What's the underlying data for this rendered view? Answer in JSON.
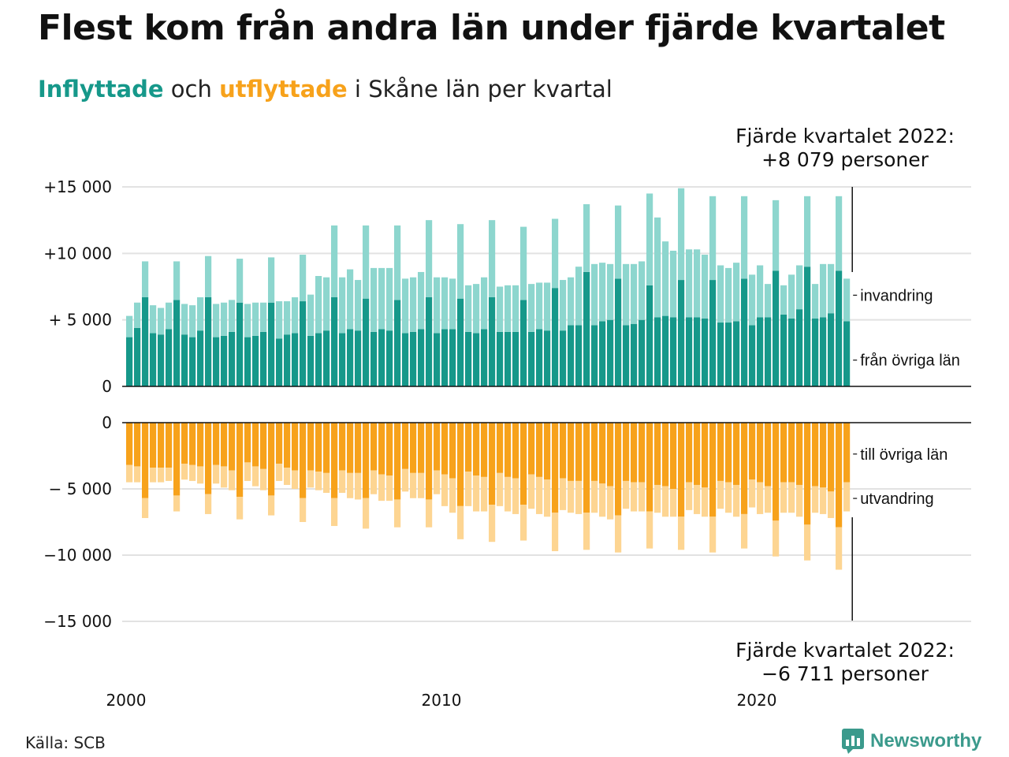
{
  "title": "Flest kom från andra län under fjärde kvartalet",
  "subtitle": {
    "part_in": "Inflyttade",
    "part_mid": " och ",
    "part_out": "utflyttade",
    "part_end": " i Skåne län per kvartal"
  },
  "annotation_top": {
    "line1": "Fjärde kvartalet 2022:",
    "line2": "+8 079 personer"
  },
  "annotation_bottom": {
    "line1": "Fjärde kvartalet 2022:",
    "line2": "−6 711 personer"
  },
  "source": "Källa: SCB",
  "brand": "Newsworthy",
  "colors": {
    "in_dark": "#16988a",
    "in_light": "#8dd6ce",
    "out_dark": "#f7a21b",
    "out_light": "#fdd592",
    "grid": "#e2e2e2",
    "axis": "#111111"
  },
  "chart_data": [
    {
      "type": "bar",
      "stacked": true,
      "panel": "top",
      "x_start": "2000 Q1",
      "x_end": "2022 Q4",
      "x_ticks": [
        "2000",
        "2010",
        "2020"
      ],
      "y_ticks": [
        "+15 000",
        "+10 000",
        "+ 5 000",
        "0"
      ],
      "y_tick_values": [
        15000,
        10000,
        5000,
        0
      ],
      "ylim": [
        0,
        15000
      ],
      "grid": true,
      "series": [
        {
          "name": "från övriga län",
          "color": "#16988a",
          "values": [
            3700,
            4400,
            6700,
            4000,
            3900,
            4300,
            6500,
            3900,
            3700,
            4200,
            6700,
            3700,
            3800,
            4100,
            6300,
            3700,
            3800,
            4100,
            6300,
            3600,
            3900,
            4000,
            6400,
            3800,
            4000,
            4200,
            6700,
            4000,
            4300,
            4200,
            6600,
            4100,
            4300,
            4200,
            6500,
            4000,
            4100,
            4300,
            6700,
            4000,
            4300,
            4300,
            6600,
            4100,
            4000,
            4300,
            6700,
            4100,
            4100,
            4100,
            6500,
            4100,
            4300,
            4200,
            7400,
            4200,
            4600,
            4600,
            8600,
            4600,
            4900,
            5000,
            8100,
            4600,
            4700,
            5000,
            7600,
            5200,
            5300,
            5200,
            8000,
            5200,
            5200,
            5100,
            8000,
            4800,
            4800,
            4900,
            8100,
            4600,
            5200,
            5200,
            8700,
            5400,
            5100,
            5800,
            9000,
            5100,
            5200,
            5500,
            8700,
            4900
          ]
        },
        {
          "name": "invandring",
          "color": "#8dd6ce",
          "values": [
            1600,
            1900,
            2700,
            2100,
            2000,
            2000,
            2900,
            2300,
            2400,
            2500,
            3100,
            2500,
            2500,
            2400,
            3300,
            2500,
            2500,
            2200,
            3400,
            2800,
            2500,
            2700,
            3500,
            3100,
            4300,
            4000,
            5400,
            4200,
            4500,
            3800,
            5500,
            4800,
            4600,
            4700,
            5600,
            4100,
            4100,
            4300,
            5800,
            4200,
            3900,
            3800,
            5600,
            3500,
            3700,
            3900,
            5800,
            3400,
            3500,
            3500,
            5500,
            3600,
            3500,
            3600,
            5200,
            3800,
            3600,
            4400,
            5100,
            4600,
            4400,
            4200,
            5500,
            4600,
            4500,
            4400,
            6900,
            7500,
            5600,
            5000,
            6900,
            5100,
            5100,
            4800,
            6300,
            4300,
            4100,
            4400,
            6200,
            3800,
            3900,
            2500,
            5300,
            2200,
            3300,
            3300,
            5300,
            2600,
            4000,
            3700,
            5600,
            3200
          ]
        }
      ]
    },
    {
      "type": "bar",
      "stacked": true,
      "panel": "bottom",
      "x_start": "2000 Q1",
      "x_end": "2022 Q4",
      "x_ticks": [
        "2000",
        "2010",
        "2020"
      ],
      "y_ticks": [
        "0",
        "− 5 000",
        "−10 000",
        "−15 000"
      ],
      "y_tick_values": [
        0,
        -5000,
        -10000,
        -15000
      ],
      "ylim": [
        -15000,
        0
      ],
      "grid": true,
      "series": [
        {
          "name": "till övriga län",
          "color": "#f7a21b",
          "values": [
            -3200,
            -3300,
            -5700,
            -3400,
            -3400,
            -3400,
            -5500,
            -3100,
            -3200,
            -3300,
            -5400,
            -3200,
            -3300,
            -3600,
            -5600,
            -3000,
            -3300,
            -3500,
            -5500,
            -3100,
            -3400,
            -3600,
            -5700,
            -3600,
            -3700,
            -3800,
            -5700,
            -3600,
            -3800,
            -3800,
            -5700,
            -3600,
            -3900,
            -4000,
            -5800,
            -3500,
            -3800,
            -3800,
            -5800,
            -3600,
            -3900,
            -4200,
            -6300,
            -3700,
            -4000,
            -4100,
            -6200,
            -3800,
            -4100,
            -4200,
            -6200,
            -3900,
            -4100,
            -4300,
            -6800,
            -4200,
            -4400,
            -4400,
            -6800,
            -4400,
            -4600,
            -4800,
            -7000,
            -4400,
            -4500,
            -4500,
            -6700,
            -4700,
            -4800,
            -5000,
            -7100,
            -4500,
            -4700,
            -4900,
            -7100,
            -4400,
            -4500,
            -4700,
            -6900,
            -4300,
            -4500,
            -4800,
            -7400,
            -4500,
            -4500,
            -4700,
            -7700,
            -4800,
            -4900,
            -5200,
            -7900,
            -4500
          ]
        },
        {
          "name": "utvandring",
          "color": "#fdd592",
          "values": [
            -1300,
            -1200,
            -1500,
            -1100,
            -1100,
            -1000,
            -1200,
            -1200,
            -1200,
            -1300,
            -1500,
            -1400,
            -1600,
            -1500,
            -1700,
            -1400,
            -1500,
            -1600,
            -1500,
            -1300,
            -1300,
            -1400,
            -1800,
            -1300,
            -1400,
            -1500,
            -2100,
            -1700,
            -1900,
            -2000,
            -2300,
            -1800,
            -2000,
            -1900,
            -2100,
            -1700,
            -1900,
            -1900,
            -2100,
            -1800,
            -2400,
            -2600,
            -2500,
            -2600,
            -2700,
            -2600,
            -2800,
            -2500,
            -2600,
            -2700,
            -2700,
            -2600,
            -2800,
            -2800,
            -2900,
            -2400,
            -2400,
            -2500,
            -2800,
            -2400,
            -2500,
            -2500,
            -2800,
            -2100,
            -2200,
            -2200,
            -2800,
            -2100,
            -2300,
            -2100,
            -2500,
            -2100,
            -2200,
            -2200,
            -2700,
            -2100,
            -2300,
            -2400,
            -2600,
            -2100,
            -2400,
            -2000,
            -2700,
            -2300,
            -2300,
            -2400,
            -2700,
            -2000,
            -2000,
            -2000,
            -3200,
            -2200
          ]
        }
      ]
    }
  ]
}
